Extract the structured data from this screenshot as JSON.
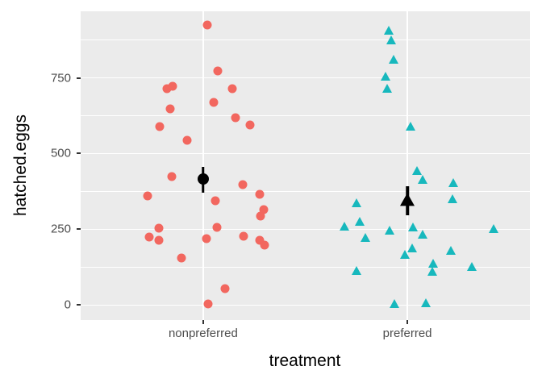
{
  "chart_data": {
    "type": "scatter",
    "subtype": "jittered-dotplot-with-mean-errorbar",
    "title": "",
    "xlabel": "treatment",
    "ylabel": "hatched.eggs",
    "ylim": [
      -50,
      970
    ],
    "y_ticks": [
      0,
      250,
      500,
      750
    ],
    "y_minor_ticks": [
      125,
      375,
      625,
      875
    ],
    "categories": [
      "nonpreferred",
      "preferred"
    ],
    "grid": "on",
    "legend": "none",
    "panel_bg": "#EBEBEB",
    "grid_color": "#FFFFFF",
    "tick_color": "#333333",
    "tick_label_color": "#4D4D4D",
    "series": [
      {
        "name": "nonpreferred",
        "marker": "circle",
        "color": "#F2675F",
        "summary": {
          "mean": 415,
          "lo": 371,
          "hi": 456
        },
        "points": [
          {
            "dx": 5,
            "y": 926
          },
          {
            "dx": 18,
            "y": 774
          },
          {
            "dx": -45,
            "y": 715
          },
          {
            "dx": -38,
            "y": 721
          },
          {
            "dx": 36,
            "y": 715
          },
          {
            "dx": 13,
            "y": 670
          },
          {
            "dx": -41,
            "y": 649
          },
          {
            "dx": 40,
            "y": 619
          },
          {
            "dx": 58,
            "y": 595
          },
          {
            "dx": -54,
            "y": 590
          },
          {
            "dx": -20,
            "y": 545
          },
          {
            "dx": -39,
            "y": 424
          },
          {
            "dx": 49,
            "y": 398
          },
          {
            "dx": -69,
            "y": 360
          },
          {
            "dx": 70,
            "y": 366
          },
          {
            "dx": 15,
            "y": 344
          },
          {
            "dx": 75,
            "y": 315
          },
          {
            "dx": 71,
            "y": 294
          },
          {
            "dx": -55,
            "y": 254
          },
          {
            "dx": 17,
            "y": 256
          },
          {
            "dx": -67,
            "y": 224
          },
          {
            "dx": -55,
            "y": 214
          },
          {
            "dx": 4,
            "y": 219
          },
          {
            "dx": 50,
            "y": 227
          },
          {
            "dx": 70,
            "y": 214
          },
          {
            "dx": 76,
            "y": 198
          },
          {
            "dx": -27,
            "y": 155
          },
          {
            "dx": 27,
            "y": 53
          },
          {
            "dx": 6,
            "y": 3
          }
        ]
      },
      {
        "name": "preferred",
        "marker": "triangle",
        "color": "#17B8BD",
        "summary": {
          "mean": 347,
          "lo": 296,
          "hi": 392
        },
        "points": [
          {
            "dx": -23,
            "y": 905
          },
          {
            "dx": -20,
            "y": 873
          },
          {
            "dx": -17,
            "y": 809
          },
          {
            "dx": -27,
            "y": 755
          },
          {
            "dx": -25,
            "y": 715
          },
          {
            "dx": 4,
            "y": 590
          },
          {
            "dx": 12,
            "y": 443
          },
          {
            "dx": 19,
            "y": 414
          },
          {
            "dx": 57,
            "y": 403
          },
          {
            "dx": 56,
            "y": 350
          },
          {
            "dx": -63,
            "y": 336
          },
          {
            "dx": -59,
            "y": 275
          },
          {
            "dx": -78,
            "y": 259
          },
          {
            "dx": -22,
            "y": 245
          },
          {
            "dx": 7,
            "y": 256
          },
          {
            "dx": 19,
            "y": 232
          },
          {
            "dx": 107,
            "y": 251
          },
          {
            "dx": -52,
            "y": 222
          },
          {
            "dx": 6,
            "y": 187
          },
          {
            "dx": -3,
            "y": 165
          },
          {
            "dx": 54,
            "y": 179
          },
          {
            "dx": 32,
            "y": 136
          },
          {
            "dx": 80,
            "y": 125
          },
          {
            "dx": 31,
            "y": 109
          },
          {
            "dx": -63,
            "y": 112
          },
          {
            "dx": -16,
            "y": 3
          },
          {
            "dx": 23,
            "y": 5
          }
        ]
      }
    ]
  }
}
